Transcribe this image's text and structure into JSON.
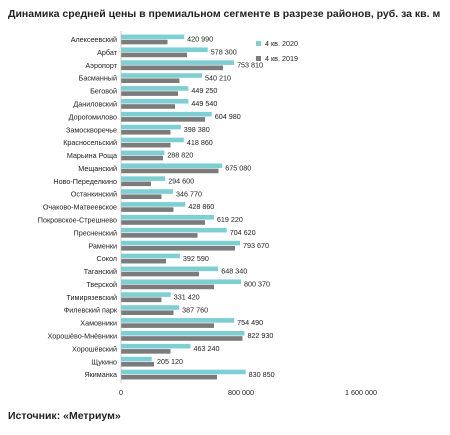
{
  "chart_data": {
    "type": "bar",
    "orientation": "horizontal",
    "title": "Динамика средней цены в премиальном сегменте в разрезе районов, руб. за кв. м",
    "source": "Источник: «Метриум»",
    "xlim": [
      0,
      1600000
    ],
    "x_ticks": [
      "0",
      "800 000",
      "1 600 000"
    ],
    "x_tick_values": [
      0,
      800000,
      1600000
    ],
    "grid": false,
    "legend_position": "top-right",
    "categories": [
      "Алексеевский",
      "Арбат",
      "Аэропорт",
      "Басманный",
      "Беговой",
      "Даниловский",
      "Дорогомилово",
      "Замоскворечье",
      "Красносельский",
      "Марьина Роща",
      "Мещанский",
      "Ново-Переделкино",
      "Останкинский",
      "Очаково-Матвеевское",
      "Покровское-Стрешнево",
      "Пресненский",
      "Раменки",
      "Сокол",
      "Таганский",
      "Тверской",
      "Тимирязевский",
      "Филевский парк",
      "Хамовники",
      "Хорошёво-Мнёвники",
      "Хорошёвский",
      "Щукино",
      "Якиманка"
    ],
    "series": [
      {
        "name": "4 кв. 2020",
        "color": "#7ecfd4",
        "values": [
          420990,
          578300,
          753810,
          540210,
          449250,
          449540,
          604980,
          398380,
          418860,
          288820,
          675080,
          294600,
          346770,
          428860,
          619220,
          704620,
          793670,
          392590,
          648340,
          800370,
          331420,
          387760,
          754490,
          822930,
          463240,
          205120,
          830850
        ],
        "labels": [
          "420 990",
          "578 300",
          "753 810",
          "540 210",
          "449 250",
          "449 540",
          "604 980",
          "398 380",
          "418 860",
          "288 820",
          "675 080",
          "294 600",
          "346 770",
          "428 860",
          "619 220",
          "704 620",
          "793 670",
          "392 590",
          "648 340",
          "800 370",
          "331 420",
          "387 760",
          "754 490",
          "822 930",
          "463 240",
          "205 120",
          "830 850"
        ]
      },
      {
        "name": "4 кв. 2019",
        "color": "#7b7b7b",
        "values": [
          310000,
          440000,
          680000,
          390000,
          380000,
          360000,
          560000,
          330000,
          330000,
          280000,
          650000,
          200000,
          270000,
          350000,
          560000,
          510000,
          760000,
          300000,
          520000,
          620000,
          270000,
          350000,
          620000,
          810000,
          330000,
          220000,
          640000
        ]
      }
    ]
  }
}
